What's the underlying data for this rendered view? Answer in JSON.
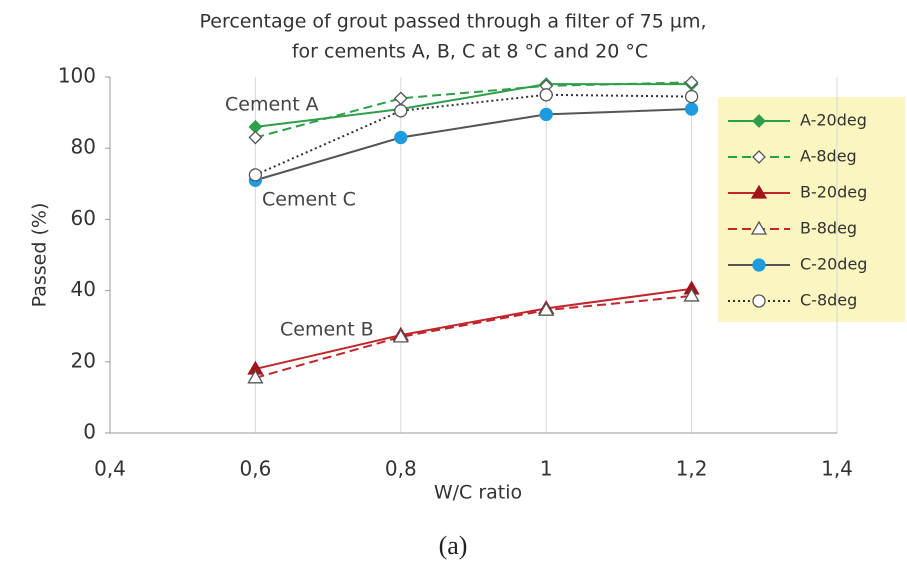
{
  "chart_data": {
    "type": "line",
    "title": [
      "Percentage of grout passed through a filter of 75 µm,",
      "for cements A, B, C at 8 °C and 20 °C"
    ],
    "x_label": "W/C ratio",
    "y_label": "Passed (%)",
    "caption": "(a)",
    "annotations": [
      "Cement A",
      "Cement C",
      "Cement B"
    ],
    "x": [
      0.6,
      0.8,
      1,
      1.2
    ],
    "xlim": [
      0.4,
      1.4
    ],
    "xticks": [
      {
        "value": 0.4,
        "label": "0,4"
      },
      {
        "value": 0.6,
        "label": "0,6"
      },
      {
        "value": 0.8,
        "label": "0,8"
      },
      1,
      {
        "value": 1.2,
        "label": "1,2"
      },
      {
        "value": 1.4,
        "label": "1,4"
      }
    ],
    "ylim": [
      0,
      100
    ],
    "yticks": [
      0,
      20,
      40,
      60,
      80,
      100
    ],
    "grid": "x",
    "legend": "right",
    "series": [
      {
        "name": "A-20deg",
        "color": "#2e9e4a",
        "marker_color": "#2e9e4a",
        "marker": "diamond",
        "filled": true,
        "dash": "solid",
        "values": [
          86,
          91,
          98,
          98
        ]
      },
      {
        "name": "A-8deg",
        "color": "#2e9e4a",
        "marker_color": "#555555",
        "marker": "diamond",
        "filled": false,
        "dash": "dashed",
        "values": [
          83,
          94,
          97.5,
          98.5
        ]
      },
      {
        "name": "B-20deg",
        "color": "#c0262b",
        "marker_color": "#a0141a",
        "marker": "triangle",
        "filled": true,
        "dash": "solid",
        "values": [
          18,
          27.5,
          35,
          40.5
        ]
      },
      {
        "name": "B-8deg",
        "color": "#c0262b",
        "marker_color": "#555555",
        "marker": "triangle",
        "filled": false,
        "dash": "dashed",
        "values": [
          15.5,
          27,
          34.5,
          38.5
        ]
      },
      {
        "name": "C-20deg",
        "color": "#555555",
        "marker_color": "#1e9be0",
        "marker": "circle",
        "filled": true,
        "dash": "solid",
        "values": [
          71,
          83,
          89.5,
          91
        ]
      },
      {
        "name": "C-8deg",
        "color": "#333333",
        "marker_color": "#555555",
        "marker": "circle",
        "filled": false,
        "dash": "dotted",
        "values": [
          72.5,
          90.5,
          95,
          94.5
        ]
      }
    ]
  }
}
